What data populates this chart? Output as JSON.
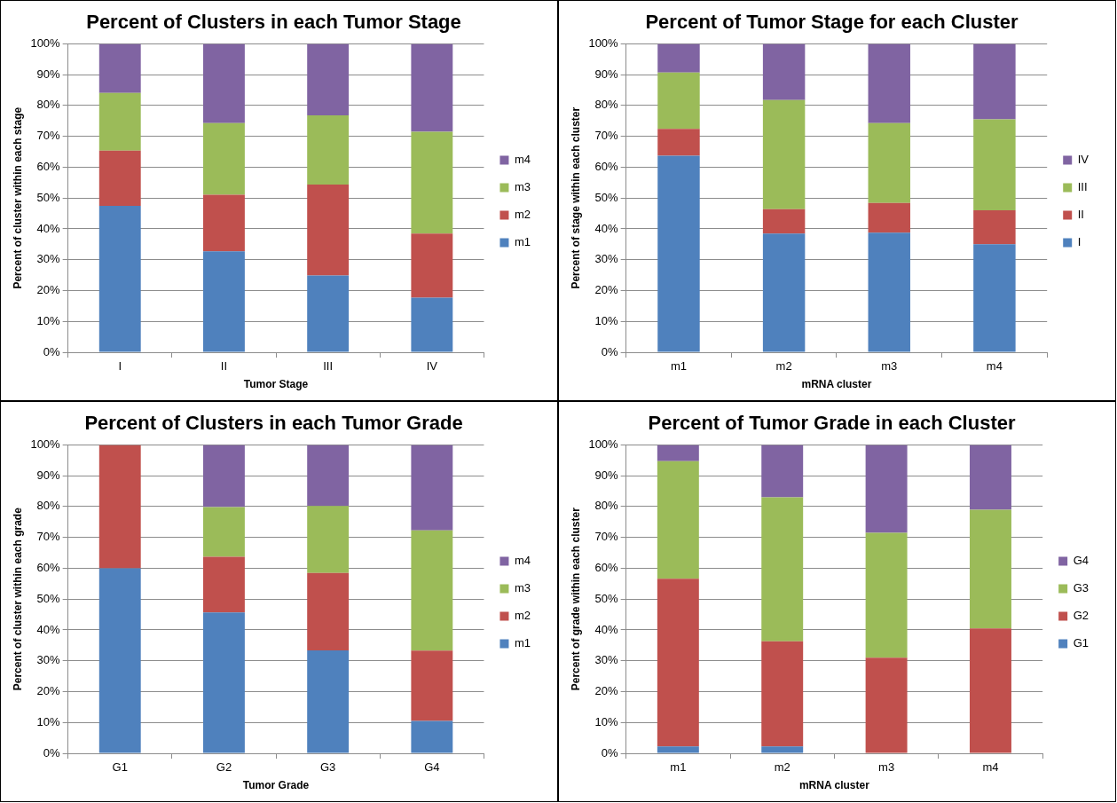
{
  "chart_data": [
    {
      "type": "bar",
      "title": "Percent of Clusters in each Tumor Stage",
      "xlabel": "Tumor Stage",
      "ylabel": "Percent of cluster within each stage",
      "categories": [
        "I",
        "II",
        "III",
        "IV"
      ],
      "stacked": true,
      "legend": "right",
      "grid": "y",
      "ylim": [
        0,
        100
      ],
      "yticks": [
        {
          "value": 0,
          "label": "0%"
        },
        {
          "value": 10,
          "label": "10%"
        },
        {
          "value": 20,
          "label": "20%"
        },
        {
          "value": 30,
          "label": "30%"
        },
        {
          "value": 40,
          "label": "40%"
        },
        {
          "value": 50,
          "label": "50%"
        },
        {
          "value": 60,
          "label": "60%"
        },
        {
          "value": 70,
          "label": "70%"
        },
        {
          "value": 80,
          "label": "80%"
        },
        {
          "value": 90,
          "label": "90%"
        },
        {
          "value": 100,
          "label": "100%"
        }
      ],
      "series": [
        {
          "name": "m1",
          "color": "#4f81bd",
          "values": [
            47.5,
            32.7,
            24.9,
            17.7
          ]
        },
        {
          "name": "m2",
          "color": "#c0504d",
          "values": [
            17.9,
            18.4,
            29.5,
            20.8
          ]
        },
        {
          "name": "m3",
          "color": "#9bbb59",
          "values": [
            18.7,
            23.2,
            22.4,
            33
          ]
        },
        {
          "name": "m4",
          "color": "#8064a2",
          "values": [
            15.9,
            25.7,
            23.2,
            28.5
          ]
        }
      ]
    },
    {
      "type": "bar",
      "title": "Percent of Tumor Stage for each Cluster",
      "xlabel": "mRNA cluster",
      "ylabel": "Percent of stage within each cluster",
      "categories": [
        "m1",
        "m2",
        "m3",
        "m4"
      ],
      "stacked": true,
      "legend": "right",
      "grid": "y",
      "ylim": [
        0,
        100
      ],
      "yticks": [
        {
          "value": 0,
          "label": "0%"
        },
        {
          "value": 10,
          "label": "10%"
        },
        {
          "value": 20,
          "label": "20%"
        },
        {
          "value": 30,
          "label": "30%"
        },
        {
          "value": 40,
          "label": "40%"
        },
        {
          "value": 50,
          "label": "50%"
        },
        {
          "value": 60,
          "label": "60%"
        },
        {
          "value": 70,
          "label": "70%"
        },
        {
          "value": 80,
          "label": "80%"
        },
        {
          "value": 90,
          "label": "90%"
        },
        {
          "value": 100,
          "label": "100%"
        }
      ],
      "series": [
        {
          "name": "I",
          "color": "#4f81bd",
          "values": [
            63.7,
            38.5,
            38.8,
            35
          ]
        },
        {
          "name": "II",
          "color": "#c0504d",
          "values": [
            8.7,
            7.9,
            9.6,
            11
          ]
        },
        {
          "name": "III",
          "color": "#9bbb59",
          "values": [
            18.3,
            35.4,
            25.9,
            29.5
          ]
        },
        {
          "name": "IV",
          "color": "#8064a2",
          "values": [
            9.3,
            18.2,
            25.7,
            24.5
          ]
        }
      ]
    },
    {
      "type": "bar",
      "title": "Percent of Clusters in each Tumor Grade",
      "xlabel": "Tumor Grade",
      "ylabel": "Percent of cluster within each grade",
      "categories": [
        "G1",
        "G2",
        "G3",
        "G4"
      ],
      "stacked": true,
      "legend": "right",
      "grid": "y",
      "ylim": [
        0,
        100
      ],
      "yticks": [
        {
          "value": 0,
          "label": "0%"
        },
        {
          "value": 10,
          "label": "10%"
        },
        {
          "value": 20,
          "label": "20%"
        },
        {
          "value": 30,
          "label": "30%"
        },
        {
          "value": 40,
          "label": "40%"
        },
        {
          "value": 50,
          "label": "50%"
        },
        {
          "value": 60,
          "label": "60%"
        },
        {
          "value": 70,
          "label": "70%"
        },
        {
          "value": 80,
          "label": "80%"
        },
        {
          "value": 90,
          "label": "90%"
        },
        {
          "value": 100,
          "label": "100%"
        }
      ],
      "series": [
        {
          "name": "m1",
          "color": "#4f81bd",
          "values": [
            60,
            45.7,
            33.4,
            10.5
          ]
        },
        {
          "name": "m2",
          "color": "#c0504d",
          "values": [
            40,
            18,
            25.1,
            22.8
          ]
        },
        {
          "name": "m3",
          "color": "#9bbb59",
          "values": [
            0,
            16.1,
            21.7,
            39
          ]
        },
        {
          "name": "m4",
          "color": "#8064a2",
          "values": [
            0,
            20.2,
            19.8,
            27.7
          ]
        }
      ]
    },
    {
      "type": "bar",
      "title": "Percent of Tumor Grade in each Cluster",
      "xlabel": "mRNA cluster",
      "ylabel": "Percent of grade within each cluster",
      "categories": [
        "m1",
        "m2",
        "m3",
        "m4"
      ],
      "stacked": true,
      "legend": "right",
      "grid": "y",
      "ylim": [
        0,
        100
      ],
      "yticks": [
        {
          "value": 0,
          "label": "0%"
        },
        {
          "value": 10,
          "label": "10%"
        },
        {
          "value": 20,
          "label": "20%"
        },
        {
          "value": 30,
          "label": "30%"
        },
        {
          "value": 40,
          "label": "40%"
        },
        {
          "value": 50,
          "label": "50%"
        },
        {
          "value": 60,
          "label": "60%"
        },
        {
          "value": 70,
          "label": "70%"
        },
        {
          "value": 80,
          "label": "80%"
        },
        {
          "value": 90,
          "label": "90%"
        },
        {
          "value": 100,
          "label": "100%"
        }
      ],
      "series": [
        {
          "name": "G1",
          "color": "#4f81bd",
          "values": [
            2.2,
            2.2,
            0,
            0
          ]
        },
        {
          "name": "G2",
          "color": "#c0504d",
          "values": [
            54.4,
            34.1,
            31,
            40.5
          ]
        },
        {
          "name": "G3",
          "color": "#9bbb59",
          "values": [
            38.1,
            46.7,
            40.5,
            38.5
          ]
        },
        {
          "name": "G4",
          "color": "#8064a2",
          "values": [
            5.3,
            17,
            28.5,
            21
          ]
        }
      ]
    }
  ]
}
